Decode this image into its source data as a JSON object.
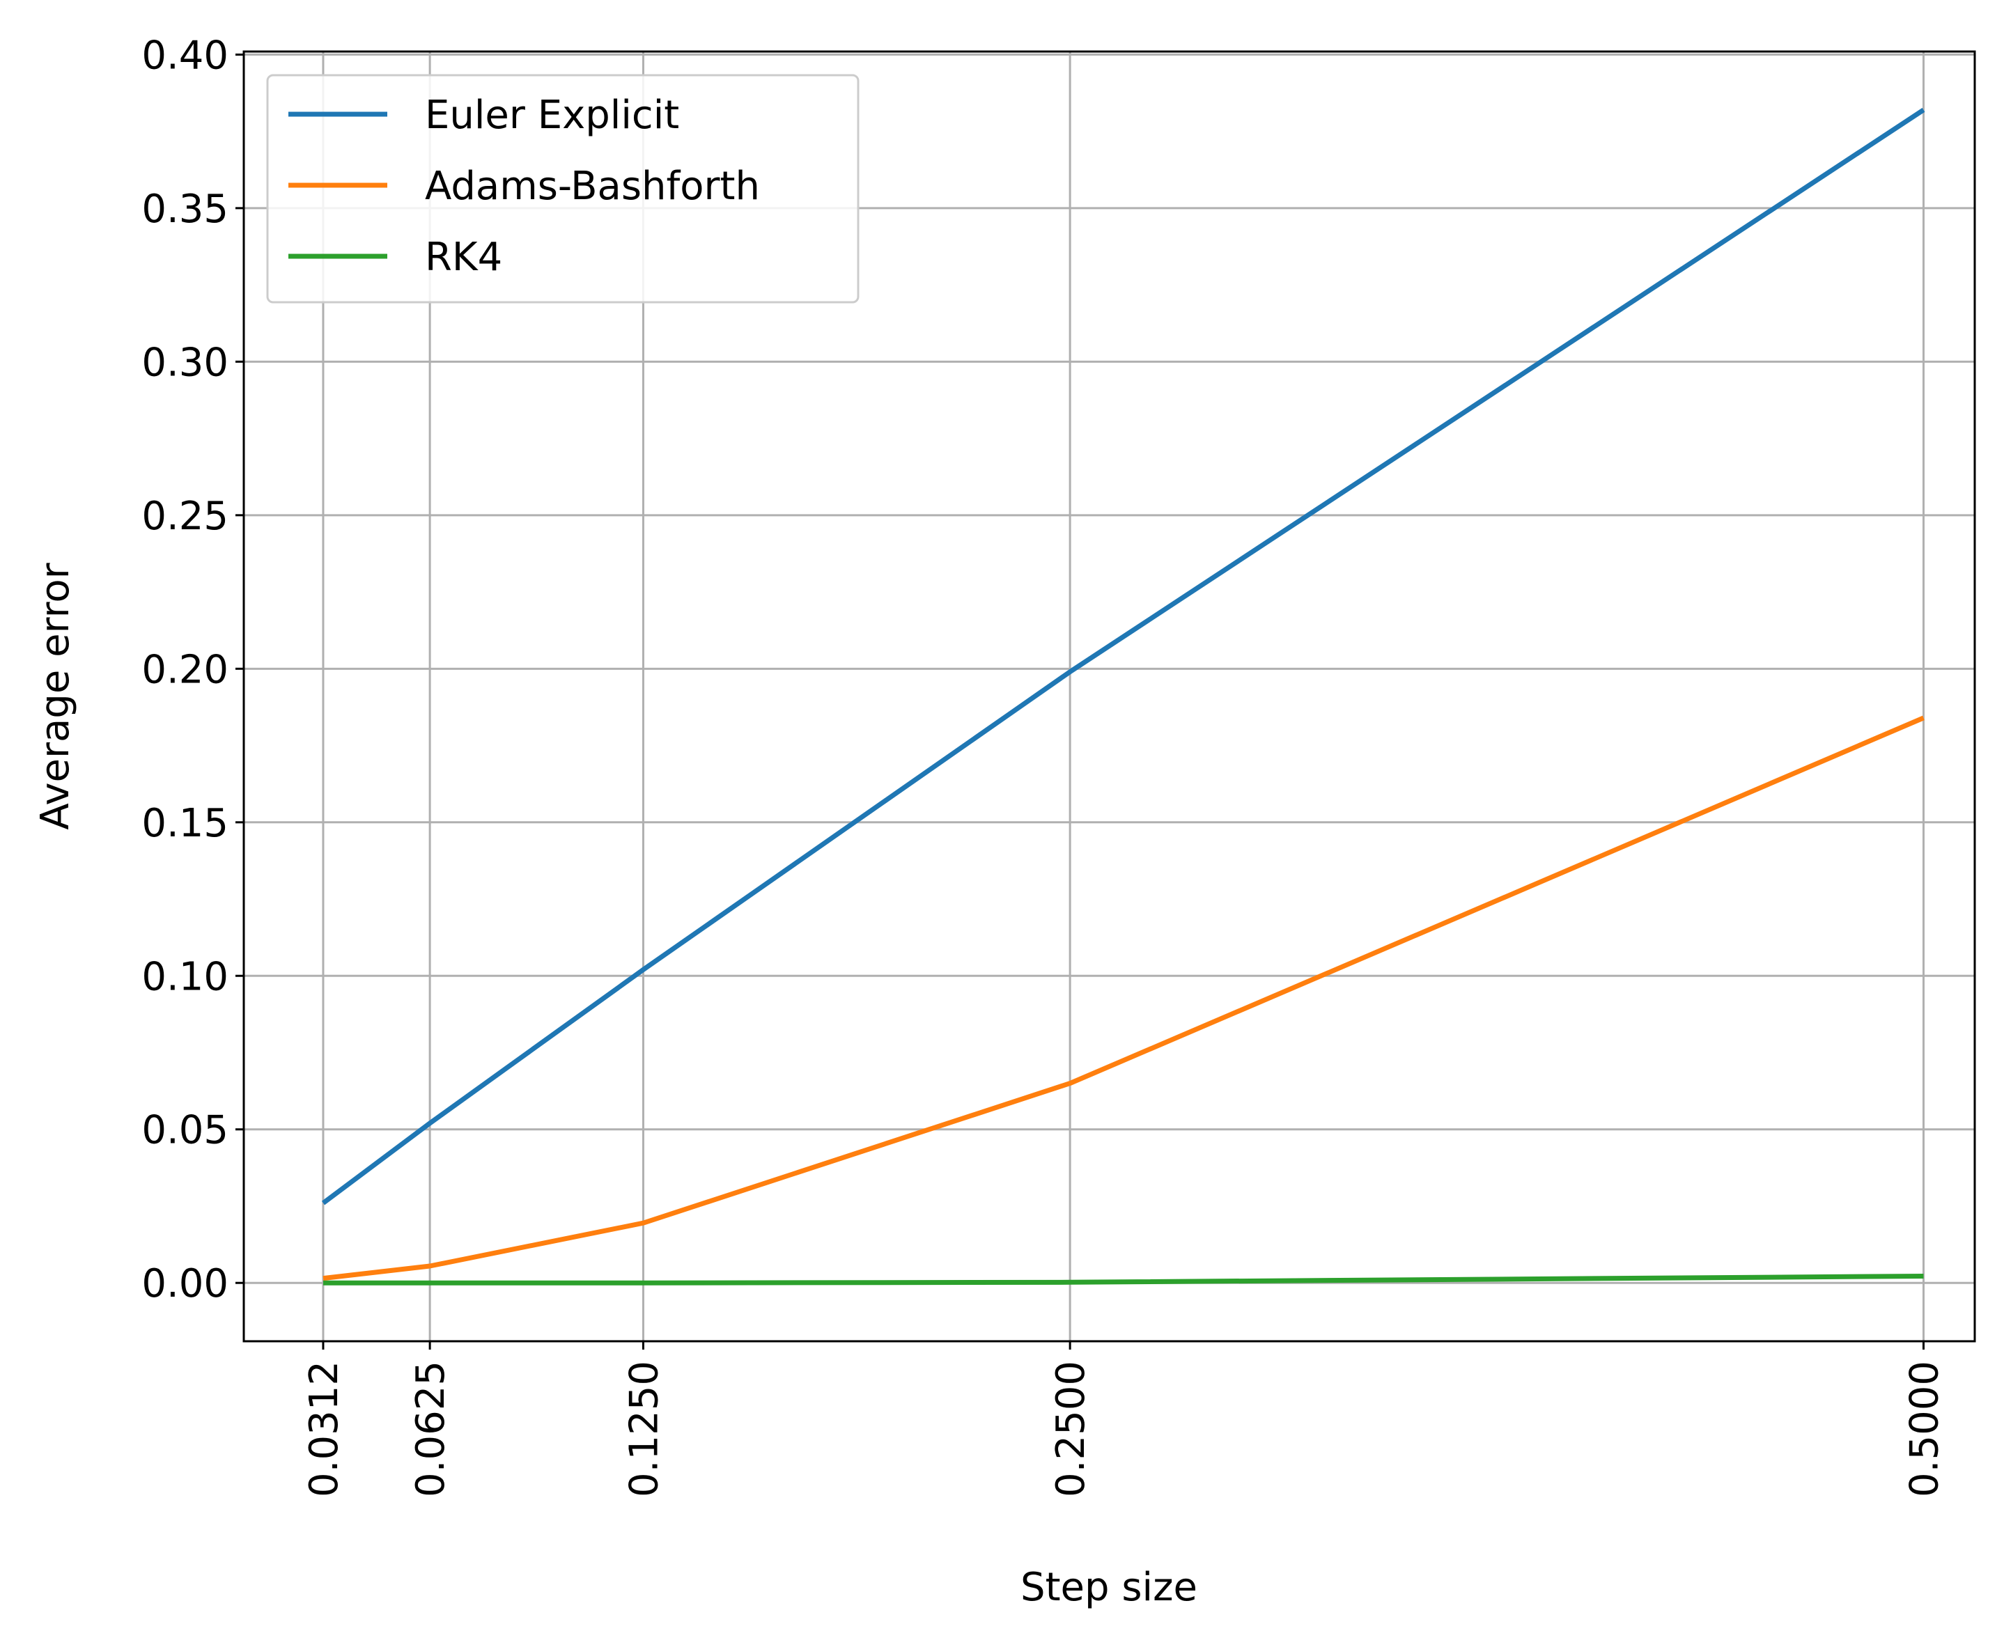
{
  "chart_data": {
    "type": "line",
    "title": "",
    "xlabel": "Step size",
    "ylabel": "Average error",
    "x": [
      0.03125,
      0.0625,
      0.125,
      0.25,
      0.5
    ],
    "x_tick_labels": [
      "0.0312",
      "0.0625",
      "0.1250",
      "0.2500",
      "0.5000"
    ],
    "y_ticks": [
      0.0,
      0.05,
      0.1,
      0.15,
      0.2,
      0.25,
      0.3,
      0.35,
      0.4
    ],
    "y_tick_labels": [
      "0.00",
      "0.05",
      "0.10",
      "0.15",
      "0.20",
      "0.25",
      "0.30",
      "0.35",
      "0.40"
    ],
    "xlim": [
      0.008,
      0.515
    ],
    "ylim": [
      -0.019,
      0.401
    ],
    "grid": true,
    "legend_position": "upper left",
    "series": [
      {
        "name": "Euler Explicit",
        "color": "#1f77b4",
        "values": [
          0.026,
          0.052,
          0.102,
          0.199,
          0.382
        ]
      },
      {
        "name": "Adams-Bashforth",
        "color": "#ff7f0e",
        "values": [
          0.0015,
          0.0055,
          0.0195,
          0.065,
          0.184
        ]
      },
      {
        "name": "RK4",
        "color": "#2ca02c",
        "values": [
          0.0,
          0.0,
          0.0,
          0.0002,
          0.0022
        ]
      }
    ]
  }
}
